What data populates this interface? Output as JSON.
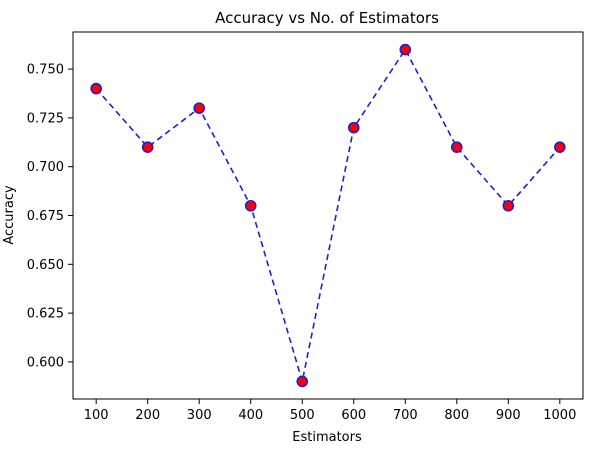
{
  "chart_data": {
    "type": "line",
    "title": "Accuracy vs No. of Estimators",
    "xlabel": "Estimators",
    "ylabel": "Accuracy",
    "x": [
      100,
      200,
      300,
      400,
      500,
      600,
      700,
      800,
      900,
      1000
    ],
    "series": [
      {
        "values": [
          0.74,
          0.71,
          0.73,
          0.68,
          0.59,
          0.72,
          0.76,
          0.71,
          0.68,
          0.71
        ],
        "line_color": "#1f1fd6",
        "line_style": "dashed",
        "marker": "circle",
        "marker_face_color": "#ff0000",
        "marker_edge_color": "#1f1fd6"
      }
    ],
    "x_ticks": [
      "100",
      "200",
      "300",
      "400",
      "500",
      "600",
      "700",
      "800",
      "900",
      "1000"
    ],
    "y_ticks": [
      "0.600",
      "0.625",
      "0.650",
      "0.675",
      "0.700",
      "0.725",
      "0.750"
    ],
    "xlim": [
      55,
      1045
    ],
    "ylim": [
      0.581,
      0.769
    ],
    "grid": false,
    "legend": "none"
  }
}
